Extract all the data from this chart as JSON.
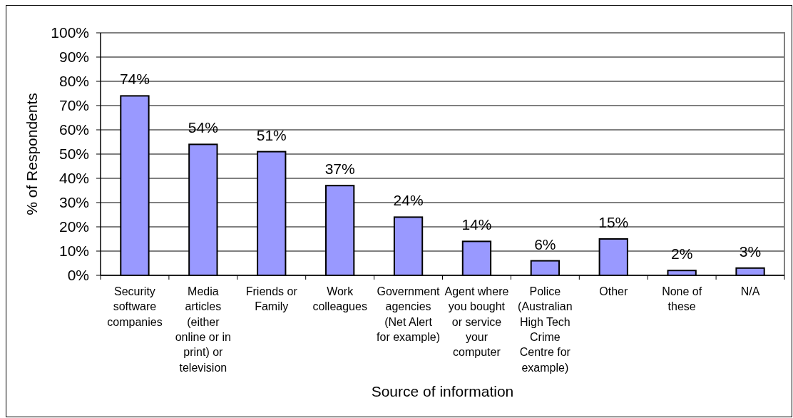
{
  "chart_data": {
    "type": "bar",
    "xlabel": "Source of information",
    "ylabel": "% of Respondents",
    "categories": [
      "Security software companies",
      "Media articles (either online or in print) or television",
      "Friends or Family",
      "Work colleagues",
      "Government agencies (Net Alert for example)",
      "Agent where you bought or service your computer",
      "Police (Australian High Tech Crime Centre for example)",
      "Other",
      "None of these",
      "N/A"
    ],
    "values": [
      74,
      54,
      51,
      37,
      24,
      14,
      6,
      15,
      2,
      3
    ],
    "value_labels": [
      "74%",
      "54%",
      "51%",
      "37%",
      "24%",
      "14%",
      "6%",
      "15%",
      "2%",
      "3%"
    ],
    "color": "#9999ff",
    "ylim": [
      0,
      100
    ],
    "yticks": [
      {
        "value": 0,
        "label": "0%"
      },
      {
        "value": 10,
        "label": "10%"
      },
      {
        "value": 20,
        "label": "20%"
      },
      {
        "value": 30,
        "label": "30%"
      },
      {
        "value": 40,
        "label": "40%"
      },
      {
        "value": 50,
        "label": "50%"
      },
      {
        "value": 60,
        "label": "60%"
      },
      {
        "value": 70,
        "label": "70%"
      },
      {
        "value": 80,
        "label": "80%"
      },
      {
        "value": 90,
        "label": "90%"
      },
      {
        "value": 100,
        "label": "100%"
      }
    ],
    "grid": "y"
  }
}
